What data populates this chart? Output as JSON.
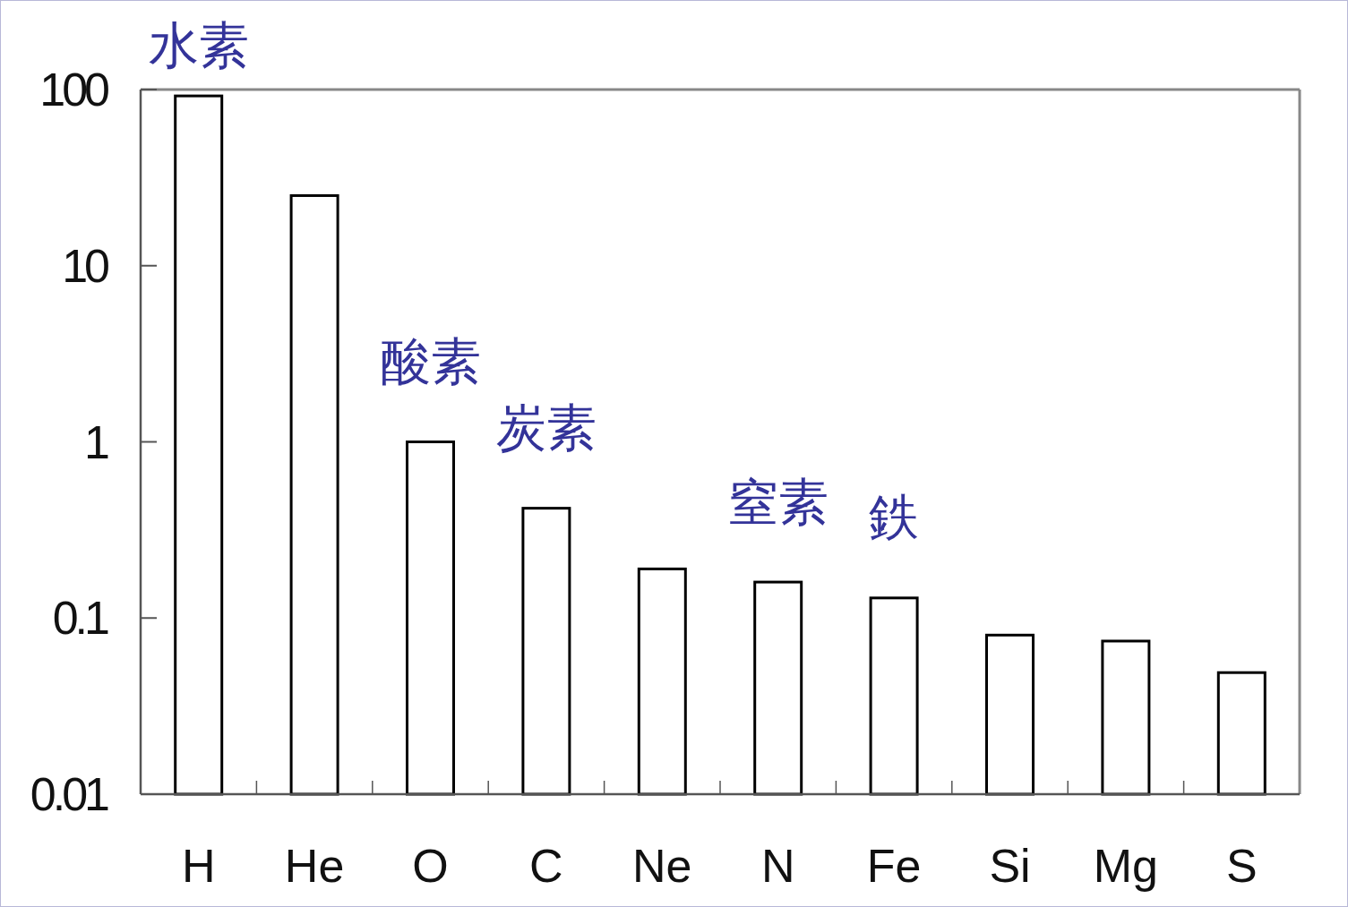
{
  "chart_data": {
    "type": "bar",
    "categories": [
      "H",
      "He",
      "O",
      "C",
      "Ne",
      "N",
      "Fe",
      "Si",
      "Mg",
      "S"
    ],
    "values": [
      92,
      25,
      1,
      0.42,
      0.19,
      0.16,
      0.13,
      0.08,
      0.074,
      0.049
    ],
    "color": "#ffffff",
    "log": true,
    "ylim": [
      0.01,
      100
    ],
    "yticks": [
      0.01,
      0.1,
      1,
      10,
      100
    ],
    "grid": false,
    "annotations": [
      {
        "text": "水素",
        "x": "H",
        "y": 92
      },
      {
        "text": "酸素",
        "x": "O",
        "y": 1
      },
      {
        "text": "炭素",
        "x": "C",
        "y": 0.42
      },
      {
        "text": "窒素",
        "x": "N",
        "y": 0.16
      },
      {
        "text": "鉄",
        "x": "Fe",
        "y": 0.13
      }
    ]
  }
}
